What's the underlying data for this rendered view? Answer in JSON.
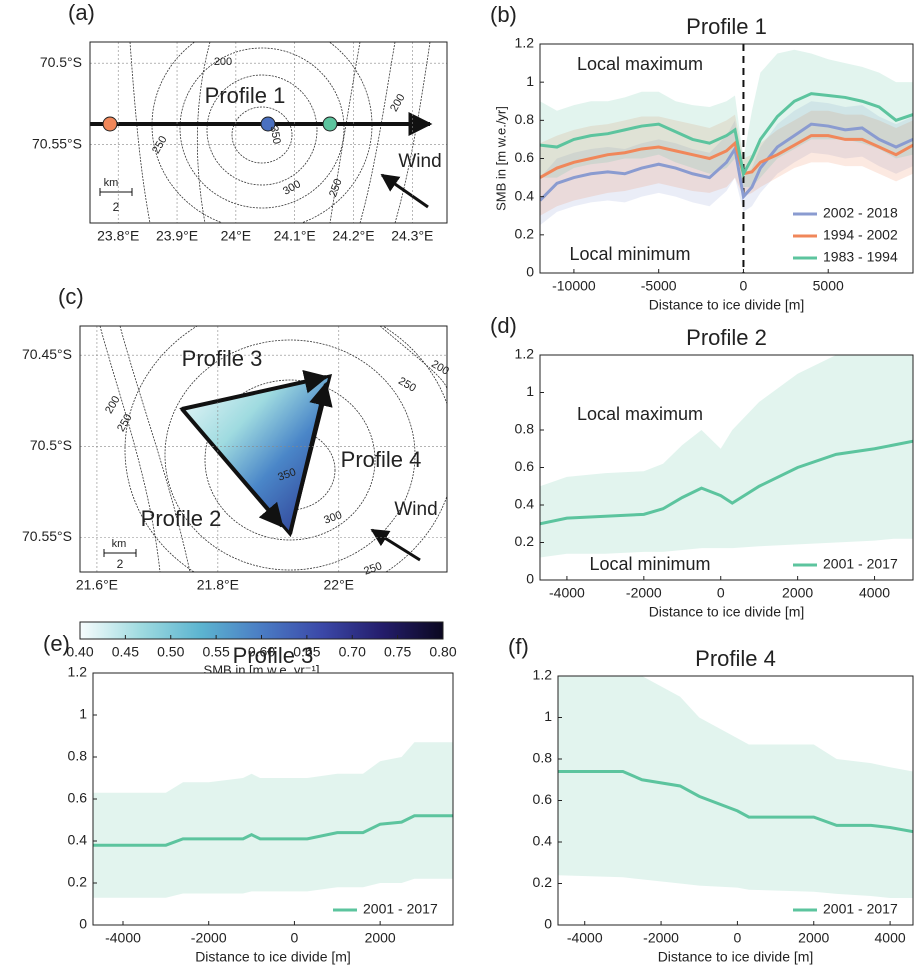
{
  "chart_data": [
    {
      "type": "map",
      "panel_label": "(a)",
      "xlim": [
        23.752,
        24.359
      ],
      "ylim": [
        -70.598,
        -70.487
      ],
      "xticks": [
        {
          "value": 23.8,
          "label": "23.8°E"
        },
        {
          "value": 23.9,
          "label": "23.9°E"
        },
        {
          "value": 24,
          "label": "24°E"
        },
        {
          "value": 24.1,
          "label": "24.1°E"
        },
        {
          "value": 24.2,
          "label": "24.2°E"
        },
        {
          "value": 24.3,
          "label": "24.3°E"
        }
      ],
      "yticks": [
        {
          "value": -70.5,
          "label": "70.5°S"
        },
        {
          "value": -70.55,
          "label": "70.55°S"
        }
      ],
      "grid": true,
      "contour_labels": [
        "200",
        "350",
        "250",
        "300",
        "200",
        "250"
      ],
      "annotations": [
        "Profile 1",
        "Wind",
        "km",
        "2"
      ]
    },
    {
      "type": "line",
      "panel_label": "(b)",
      "title": "Profile 1",
      "xlabel": "Distance to ice divide [m]",
      "ylabel": "SMB in [m w.e./yr]",
      "xlim": [
        -12000,
        10000
      ],
      "ylim": [
        0,
        1.2
      ],
      "xticks": [
        -10000,
        -5000,
        0,
        5000
      ],
      "yticks": [
        0,
        0.2,
        0.4,
        0.6,
        0.8,
        1,
        1.2
      ],
      "grid": false,
      "vline": 0,
      "legend": "lower right",
      "annotations": [
        "Local maximum",
        "Local minimum"
      ],
      "x": [
        -12000,
        -11000,
        -10000,
        -9000,
        -8000,
        -7000,
        -6000,
        -5000,
        -4000,
        -3000,
        -2000,
        -1000,
        -500,
        0,
        500,
        1000,
        2000,
        3000,
        4000,
        5000,
        6000,
        7000,
        8000,
        9000,
        10000
      ],
      "series": [
        {
          "name": "2002 - 2018",
          "color": "#8a9bd0",
          "values": [
            0.38,
            0.47,
            0.5,
            0.52,
            0.53,
            0.52,
            0.55,
            0.57,
            0.55,
            0.52,
            0.5,
            0.58,
            0.65,
            0.4,
            0.45,
            0.55,
            0.66,
            0.72,
            0.78,
            0.77,
            0.75,
            0.76,
            0.7,
            0.66,
            0.7
          ],
          "lower": [
            0.25,
            0.32,
            0.35,
            0.37,
            0.38,
            0.37,
            0.4,
            0.42,
            0.4,
            0.37,
            0.35,
            0.43,
            0.5,
            0.32,
            0.35,
            0.42,
            0.52,
            0.58,
            0.63,
            0.62,
            0.6,
            0.61,
            0.56,
            0.52,
            0.56
          ],
          "upper": [
            0.5,
            0.6,
            0.63,
            0.65,
            0.66,
            0.65,
            0.68,
            0.7,
            0.68,
            0.65,
            0.63,
            0.72,
            0.8,
            0.5,
            0.55,
            0.66,
            0.78,
            0.85,
            0.9,
            0.89,
            0.87,
            0.88,
            0.82,
            0.78,
            0.82
          ]
        },
        {
          "name": "1994 - 2002",
          "color": "#f0875a",
          "values": [
            0.5,
            0.55,
            0.58,
            0.6,
            0.62,
            0.63,
            0.65,
            0.66,
            0.64,
            0.62,
            0.6,
            0.64,
            0.68,
            0.52,
            0.53,
            0.58,
            0.62,
            0.67,
            0.72,
            0.72,
            0.7,
            0.7,
            0.66,
            0.62,
            0.67
          ],
          "lower": [
            0.3,
            0.35,
            0.38,
            0.4,
            0.42,
            0.43,
            0.45,
            0.47,
            0.45,
            0.43,
            0.42,
            0.45,
            0.5,
            0.4,
            0.42,
            0.45,
            0.5,
            0.55,
            0.58,
            0.58,
            0.56,
            0.56,
            0.52,
            0.48,
            0.52
          ],
          "upper": [
            0.68,
            0.72,
            0.75,
            0.77,
            0.78,
            0.8,
            0.82,
            0.82,
            0.8,
            0.78,
            0.76,
            0.8,
            0.83,
            0.6,
            0.62,
            0.68,
            0.75,
            0.8,
            0.85,
            0.85,
            0.83,
            0.83,
            0.8,
            0.76,
            0.8
          ]
        },
        {
          "name": "1983 - 1994",
          "color": "#5cc49e",
          "values": [
            0.67,
            0.66,
            0.7,
            0.72,
            0.73,
            0.75,
            0.77,
            0.78,
            0.74,
            0.7,
            0.68,
            0.72,
            0.75,
            0.52,
            0.6,
            0.7,
            0.82,
            0.9,
            0.94,
            0.93,
            0.92,
            0.9,
            0.87,
            0.8,
            0.83
          ],
          "lower": [
            0.5,
            0.5,
            0.55,
            0.57,
            0.58,
            0.6,
            0.6,
            0.62,
            0.58,
            0.55,
            0.52,
            0.55,
            0.6,
            0.45,
            0.45,
            0.5,
            0.6,
            0.65,
            0.7,
            0.7,
            0.7,
            0.68,
            0.65,
            0.6,
            0.62
          ],
          "upper": [
            0.9,
            0.85,
            0.88,
            0.9,
            0.9,
            0.92,
            0.95,
            0.95,
            0.9,
            0.88,
            0.87,
            0.9,
            0.93,
            0.6,
            0.85,
            1.05,
            1.15,
            1.17,
            1.15,
            1.12,
            1.1,
            1.08,
            1.05,
            1.0,
            1.0
          ]
        }
      ]
    },
    {
      "type": "map",
      "panel_label": "(c)",
      "xlim": [
        21.572,
        22.179
      ],
      "ylim": [
        -70.569,
        -70.434
      ],
      "xticks": [
        {
          "value": 21.6,
          "label": "21.6°E"
        },
        {
          "value": 21.8,
          "label": "21.8°E"
        },
        {
          "value": 22,
          "label": "22°E"
        }
      ],
      "yticks": [
        {
          "value": -70.45,
          "label": "70.45°S"
        },
        {
          "value": -70.5,
          "label": "70.5°S"
        },
        {
          "value": -70.55,
          "label": "70.55°S"
        }
      ],
      "grid": true,
      "contour_labels": [
        "200",
        "250",
        "200",
        "250",
        "350",
        "300",
        "250"
      ],
      "annotations": [
        "Profile 3",
        "Profile 4",
        "Profile 2",
        "Wind",
        "km",
        "2"
      ],
      "colorbar": {
        "lim": [
          0.4,
          0.8
        ],
        "label": "SMB in [m w.e. yr⁻¹]",
        "colors": [
          "#f7fcfd",
          "#9fdbe0",
          "#5cb4d0",
          "#4a7cc4",
          "#3b48a8",
          "#241d6b",
          "#0b0820"
        ],
        "ticks": [
          {
            "value": 0.4,
            "label": "0.40"
          },
          {
            "value": 0.45,
            "label": "0.45"
          },
          {
            "value": 0.5,
            "label": "0.50"
          },
          {
            "value": 0.55,
            "label": "0.55"
          },
          {
            "value": 0.6,
            "label": "0.60"
          },
          {
            "value": 0.65,
            "label": "0.65"
          },
          {
            "value": 0.7,
            "label": "0.70"
          },
          {
            "value": 0.75,
            "label": "0.75"
          },
          {
            "value": 0.8,
            "label": "0.80"
          }
        ]
      }
    },
    {
      "type": "line",
      "panel_label": "(d)",
      "title": "Profile 2",
      "xlabel": "Distance to ice divide [m]",
      "xlim": [
        -4700,
        5000
      ],
      "ylim": [
        0,
        1.2
      ],
      "xticks": [
        -4000,
        -2000,
        0,
        2000,
        4000
      ],
      "yticks": [
        0,
        0.2,
        0.4,
        0.6,
        0.8,
        1,
        1.2
      ],
      "grid": false,
      "legend": "lower right",
      "annotations": [
        "Local maximum",
        "Local minimum"
      ],
      "x": [
        -4700,
        -4000,
        -3000,
        -2000,
        -1500,
        -1000,
        -500,
        0,
        300,
        1000,
        2000,
        3000,
        4000,
        4500,
        5000
      ],
      "series": [
        {
          "name": "2001 - 2017",
          "color": "#5cc49e",
          "values": [
            0.3,
            0.33,
            0.34,
            0.35,
            0.38,
            0.44,
            0.49,
            0.45,
            0.41,
            0.5,
            0.6,
            0.67,
            0.7,
            0.72,
            0.74
          ],
          "lower": [
            0.12,
            0.14,
            0.14,
            0.15,
            0.15,
            0.16,
            0.17,
            0.17,
            0.17,
            0.18,
            0.19,
            0.2,
            0.21,
            0.22,
            0.22
          ],
          "upper": [
            0.5,
            0.55,
            0.57,
            0.58,
            0.62,
            0.72,
            0.8,
            0.7,
            0.8,
            0.95,
            1.1,
            1.2,
            1.2,
            1.2,
            1.2
          ]
        }
      ]
    },
    {
      "type": "line",
      "panel_label": "(e)",
      "title": "Profile 3",
      "xlabel": "Distance to ice divide [m]",
      "xlim": [
        -4700,
        3700
      ],
      "ylim": [
        0,
        1.2
      ],
      "xticks": [
        -4000,
        -2000,
        0,
        2000
      ],
      "yticks": [
        0,
        0.2,
        0.4,
        0.6,
        0.8,
        1,
        1.2
      ],
      "grid": false,
      "legend": "lower right",
      "x": [
        -4700,
        -3000,
        -2600,
        -2000,
        -1200,
        -1000,
        -800,
        0,
        300,
        1000,
        1600,
        2000,
        2500,
        2800,
        3700
      ],
      "series": [
        {
          "name": "2001 - 2017",
          "color": "#5cc49e",
          "values": [
            0.38,
            0.38,
            0.41,
            0.41,
            0.41,
            0.43,
            0.41,
            0.41,
            0.41,
            0.44,
            0.44,
            0.48,
            0.49,
            0.52,
            0.52
          ],
          "lower": [
            0.13,
            0.13,
            0.15,
            0.15,
            0.15,
            0.16,
            0.16,
            0.16,
            0.16,
            0.18,
            0.18,
            0.2,
            0.2,
            0.22,
            0.22
          ],
          "upper": [
            0.63,
            0.63,
            0.68,
            0.68,
            0.7,
            0.72,
            0.7,
            0.7,
            0.7,
            0.72,
            0.72,
            0.78,
            0.8,
            0.87,
            0.87
          ]
        }
      ]
    },
    {
      "type": "line",
      "panel_label": "(f)",
      "title": "Profile 4",
      "xlabel": "Distance to ice divide [m]",
      "xlim": [
        -4700,
        4600
      ],
      "ylim": [
        0,
        1.2
      ],
      "xticks": [
        -4000,
        -2000,
        0,
        2000,
        4000
      ],
      "yticks": [
        0,
        0.2,
        0.4,
        0.6,
        0.8,
        1,
        1.2
      ],
      "grid": false,
      "legend": "lower right",
      "x": [
        -4700,
        -3000,
        -2500,
        -1500,
        -1000,
        0,
        300,
        2000,
        2600,
        3500,
        4000,
        4600
      ],
      "series": [
        {
          "name": "2001 - 2017",
          "color": "#5cc49e",
          "values": [
            0.74,
            0.74,
            0.7,
            0.67,
            0.62,
            0.55,
            0.52,
            0.52,
            0.48,
            0.48,
            0.47,
            0.45
          ],
          "lower": [
            0.24,
            0.23,
            0.22,
            0.2,
            0.19,
            0.18,
            0.17,
            0.16,
            0.15,
            0.14,
            0.13,
            0.13
          ],
          "upper": [
            1.2,
            1.2,
            1.2,
            1.1,
            1.0,
            0.9,
            0.87,
            0.87,
            0.8,
            0.78,
            0.76,
            0.74
          ]
        }
      ]
    }
  ]
}
